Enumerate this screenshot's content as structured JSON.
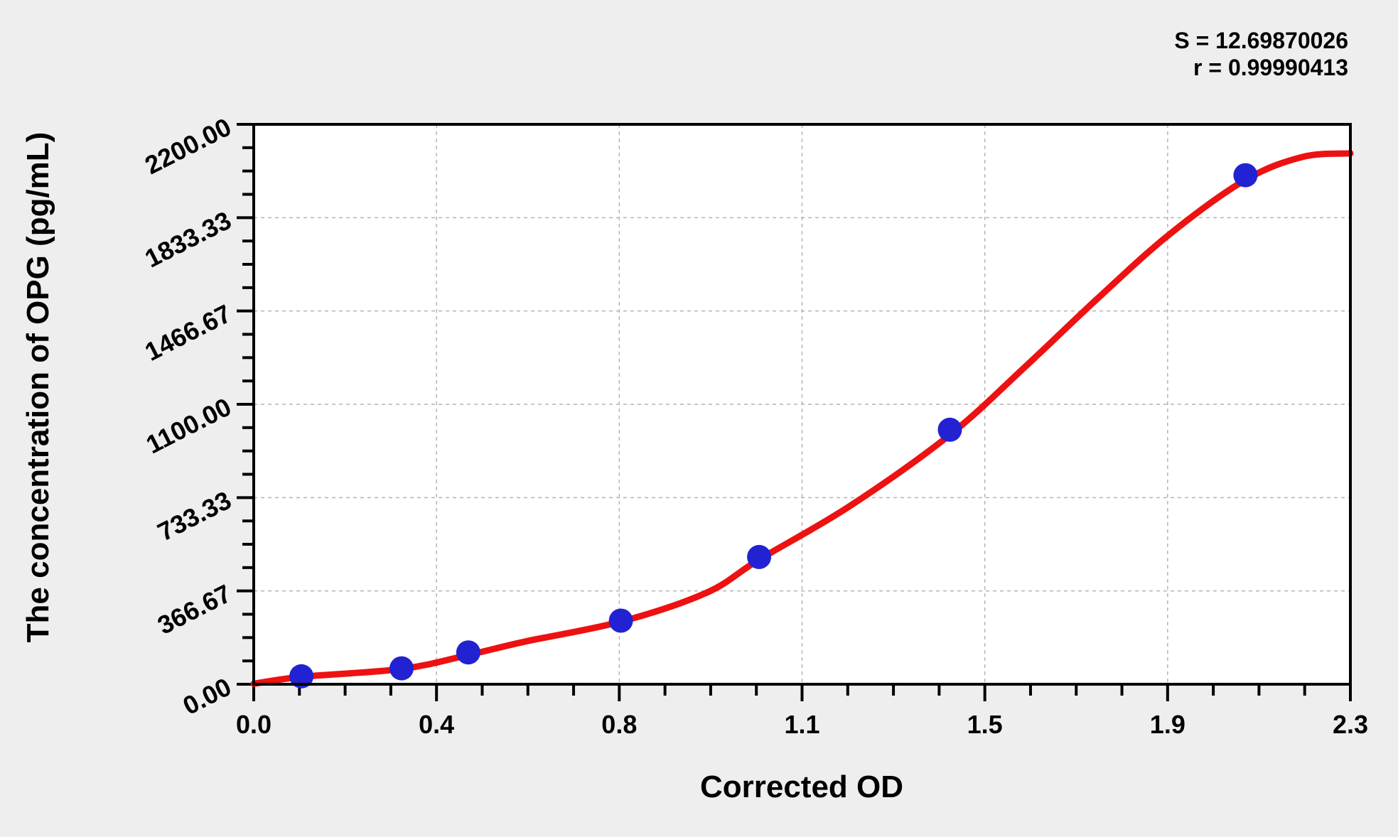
{
  "annotations": {
    "s_label": "S = 12.69870026",
    "r_label": "r = 0.99990413"
  },
  "chart_data": {
    "type": "scatter",
    "subtype": "ELISA standard curve: blue data points with red fitted sigmoid line",
    "title": "",
    "xlabel": "Corrected OD",
    "ylabel": "The concentration of OPG (pg/mL)",
    "xlim": [
      0,
      2.3
    ],
    "ylim": [
      0,
      2200
    ],
    "x_tick_labels": [
      "0.0",
      "0.4",
      "0.8",
      "1.1",
      "1.5",
      "1.9",
      "2.3"
    ],
    "y_tick_labels": [
      "0.00",
      "366.67",
      "733.33",
      "1100.00",
      "1466.67",
      "1833.33",
      "2200.00"
    ],
    "minor_ticks_per_major": 4,
    "grid": "dashed gray lines at interior major ticks, plot framed in black",
    "legend_position": "none",
    "points": [
      {
        "od": 0.1,
        "conc": 31.25
      },
      {
        "od": 0.31,
        "conc": 62.5
      },
      {
        "od": 0.45,
        "conc": 125
      },
      {
        "od": 0.77,
        "conc": 250
      },
      {
        "od": 1.06,
        "conc": 500
      },
      {
        "od": 1.46,
        "conc": 1000
      },
      {
        "od": 2.08,
        "conc": 2000
      }
    ],
    "curve_samples": [
      [
        0.0,
        2
      ],
      [
        0.1,
        29
      ],
      [
        0.31,
        60
      ],
      [
        0.45,
        115
      ],
      [
        0.57,
        168
      ],
      [
        0.77,
        246
      ],
      [
        0.95,
        360
      ],
      [
        1.06,
        490
      ],
      [
        1.25,
        700
      ],
      [
        1.46,
        980
      ],
      [
        1.62,
        1251
      ],
      [
        1.77,
        1516
      ],
      [
        1.92,
        1767
      ],
      [
        2.08,
        1982
      ],
      [
        2.2,
        2072
      ],
      [
        2.3,
        2086
      ]
    ],
    "fit": {
      "S": 12.69870026,
      "r": 0.99990413
    },
    "colors": {
      "curve": "#ee1111",
      "points": "#2222d2",
      "background": "#eeeeee",
      "plot_background": "#ffffff",
      "grid": "#b4b4b4",
      "axis": "#000000"
    }
  }
}
